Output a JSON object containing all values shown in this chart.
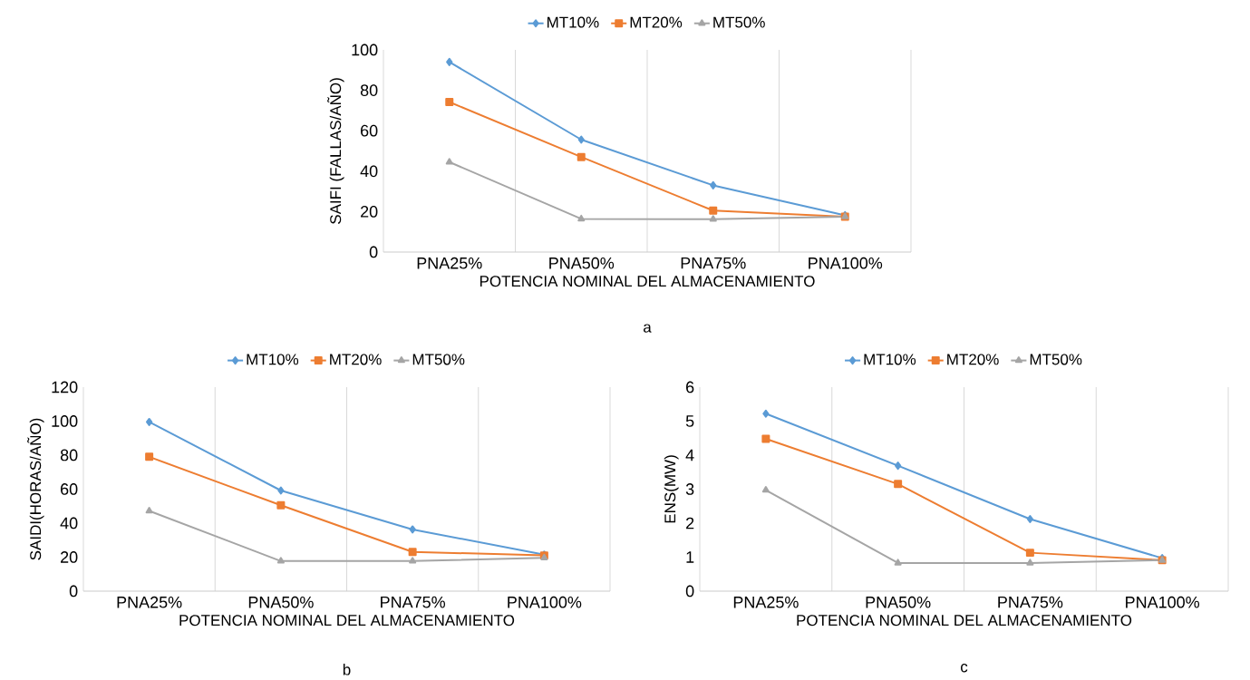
{
  "chart_data": [
    {
      "type": "line",
      "categories": [
        "PNA25%",
        "PNA50%",
        "PNA75%",
        "PNA100%"
      ],
      "xlabel": "POTENCIA NOMINAL DEL ALMACENAMIENTO",
      "ylabel": "SAIFI (FALLAS/AÑO)",
      "ylim": [
        0,
        100
      ],
      "yticks": [
        0,
        20,
        40,
        60,
        80,
        100
      ],
      "grid": "x",
      "legend": "top",
      "annotations": [
        "a"
      ],
      "series": [
        {
          "name": "MT10%",
          "color": "#5b9bd5",
          "marker": "diamond",
          "values": [
            94,
            55.6,
            33,
            18.2
          ]
        },
        {
          "name": "MT20%",
          "color": "#ed7d31",
          "marker": "square",
          "values": [
            74.2,
            47,
            20.5,
            17.5
          ]
        },
        {
          "name": "MT50%",
          "color": "#a5a5a5",
          "marker": "triangle",
          "values": [
            44.5,
            16.4,
            16.2,
            17.5
          ]
        }
      ]
    },
    {
      "type": "line",
      "categories": [
        "PNA25%",
        "PNA50%",
        "PNA75%",
        "PNA100%"
      ],
      "xlabel": "POTENCIA NOMINAL DEL ALMACENAMIENTO",
      "ylabel": "SAIDI(HORAS/AÑO)",
      "ylim": [
        0,
        120
      ],
      "yticks": [
        0,
        20,
        40,
        60,
        80,
        100,
        120
      ],
      "grid": "x",
      "legend": "top",
      "annotations": [
        "b"
      ],
      "series": [
        {
          "name": "MT10%",
          "color": "#5b9bd5",
          "marker": "diamond",
          "values": [
            99.5,
            59.2,
            36.3,
            21.5
          ]
        },
        {
          "name": "MT20%",
          "color": "#ed7d31",
          "marker": "square",
          "values": [
            79,
            50.5,
            23.1,
            21
          ]
        },
        {
          "name": "MT50%",
          "color": "#a5a5a5",
          "marker": "triangle",
          "values": [
            47.2,
            17.7,
            17.7,
            19.6
          ]
        }
      ]
    },
    {
      "type": "line",
      "categories": [
        "PNA25%",
        "PNA50%",
        "PNA75%",
        "PNA100%"
      ],
      "xlabel": "POTENCIA NOMINAL DEL ALMACENAMIENTO",
      "ylabel": "ENS(MW)",
      "ylim": [
        0,
        6
      ],
      "yticks": [
        0,
        1,
        2,
        3,
        4,
        5,
        6
      ],
      "grid": "x",
      "legend": "top",
      "annotations": [
        "c"
      ],
      "series": [
        {
          "name": "MT10%",
          "color": "#5b9bd5",
          "marker": "diamond",
          "values": [
            5.22,
            3.69,
            2.12,
            0.97
          ]
        },
        {
          "name": "MT20%",
          "color": "#ed7d31",
          "marker": "square",
          "values": [
            4.48,
            3.15,
            1.13,
            0.91
          ]
        },
        {
          "name": "MT50%",
          "color": "#a5a5a5",
          "marker": "triangle",
          "values": [
            2.97,
            0.83,
            0.83,
            0.91
          ]
        }
      ]
    }
  ]
}
